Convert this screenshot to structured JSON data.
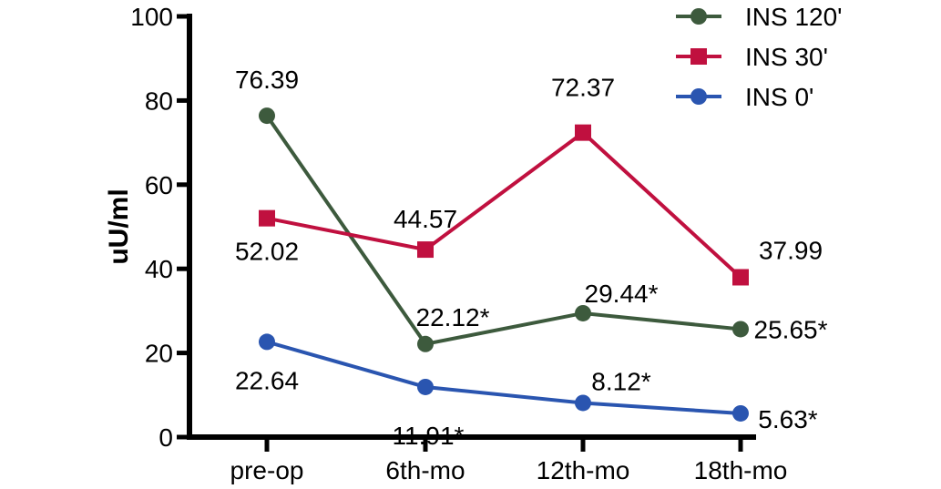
{
  "chart_data": {
    "type": "line",
    "title": "",
    "xlabel": "",
    "ylabel": "uU/ml",
    "ylim": [
      0,
      100
    ],
    "yticks": [
      0,
      20,
      40,
      60,
      80,
      100
    ],
    "categories": [
      "pre-op",
      "6th-mo",
      "12th-mo",
      "18th-mo"
    ],
    "legend_position": "top-right",
    "grid": false,
    "series": [
      {
        "name": "INS 120'",
        "color": "#3d5a3d",
        "marker": "circle",
        "values": [
          76.39,
          22.12,
          29.44,
          25.65
        ],
        "labels": [
          "76.39",
          "22.12*",
          "29.44*",
          "25.65*"
        ]
      },
      {
        "name": "INS 30'",
        "color": "#c0103f",
        "marker": "square",
        "values": [
          52.02,
          44.57,
          72.37,
          37.99
        ],
        "labels": [
          "52.02",
          "44.57",
          "72.37",
          "37.99"
        ]
      },
      {
        "name": "INS 0'",
        "color": "#2a55b0",
        "marker": "circle",
        "values": [
          22.64,
          11.91,
          8.12,
          5.63
        ],
        "labels": [
          "22.64",
          "11.91*",
          "8.12*",
          "5.63*"
        ]
      }
    ]
  }
}
